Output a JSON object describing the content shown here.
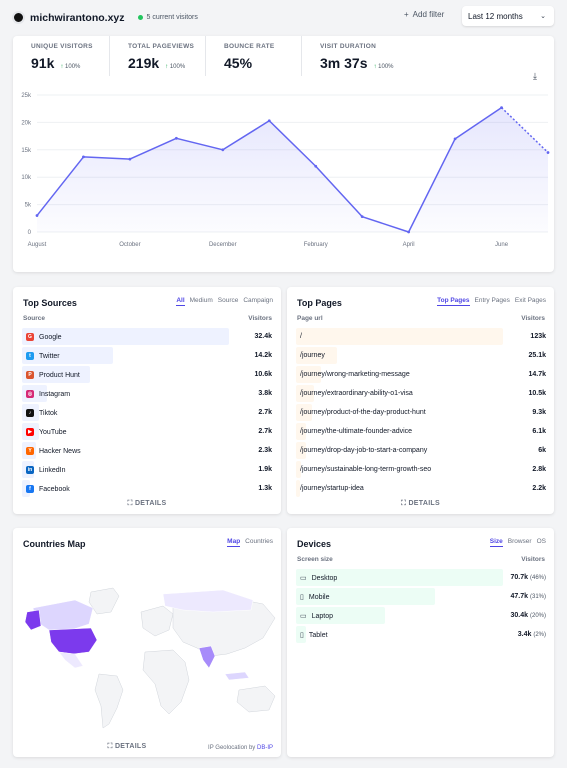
{
  "header": {
    "site": "michwirantono.xyz",
    "live_visitors": "5 current visitors",
    "add_filter": "Add filter",
    "period": "Last 12 months"
  },
  "stats": [
    {
      "label": "UNIQUE VISITORS",
      "value": "91k",
      "change": "100%"
    },
    {
      "label": "TOTAL PAGEVIEWS",
      "value": "219k",
      "change": "100%"
    },
    {
      "label": "BOUNCE RATE",
      "value": "45%",
      "change": ""
    },
    {
      "label": "VISIT DURATION",
      "value": "3m 37s",
      "change": "100%"
    }
  ],
  "chart_data": {
    "type": "line",
    "x": [
      "August",
      "September",
      "October",
      "November",
      "December",
      "January",
      "February",
      "March",
      "April",
      "May",
      "June",
      "July"
    ],
    "xticks": [
      "August",
      "October",
      "December",
      "February",
      "April",
      "June"
    ],
    "values": [
      3000,
      13700,
      13300,
      17100,
      15000,
      20300,
      12000,
      2800,
      0,
      17000,
      22700,
      14500
    ],
    "yticks": [
      "0",
      "5k",
      "10k",
      "15k",
      "20k",
      "25k"
    ],
    "ylim": [
      0,
      25000
    ],
    "color": "#6366f1",
    "last_point_incomplete": true
  },
  "sources": {
    "title": "Top Sources",
    "tabs": [
      "All",
      "Medium",
      "Source",
      "Campaign"
    ],
    "col_left": "Source",
    "col_right": "Visitors",
    "details": "DETAILS",
    "rows": [
      {
        "label": "Google",
        "value": "32.4k",
        "share": 1.0,
        "icon": "google-icon",
        "color": "#ea4335"
      },
      {
        "label": "Twitter",
        "value": "14.2k",
        "share": 0.44,
        "icon": "twitter-icon",
        "color": "#1d9bf0"
      },
      {
        "label": "Product Hunt",
        "value": "10.6k",
        "share": 0.33,
        "icon": "product-hunt-icon",
        "color": "#da552f"
      },
      {
        "label": "Instagram",
        "value": "3.8k",
        "share": 0.12,
        "icon": "instagram-icon",
        "color": "#d62976"
      },
      {
        "label": "Tiktok",
        "value": "2.7k",
        "share": 0.08,
        "icon": "tiktok-icon",
        "color": "#111111"
      },
      {
        "label": "YouTube",
        "value": "2.7k",
        "share": 0.08,
        "icon": "youtube-icon",
        "color": "#ff0000"
      },
      {
        "label": "Hacker News",
        "value": "2.3k",
        "share": 0.07,
        "icon": "hacker-news-icon",
        "color": "#ff6600"
      },
      {
        "label": "LinkedIn",
        "value": "1.9k",
        "share": 0.06,
        "icon": "linkedin-icon",
        "color": "#0a66c2"
      },
      {
        "label": "Facebook",
        "value": "1.3k",
        "share": 0.04,
        "icon": "facebook-icon",
        "color": "#1877f2"
      }
    ]
  },
  "pages": {
    "title": "Top Pages",
    "tabs": [
      "Top Pages",
      "Entry Pages",
      "Exit Pages"
    ],
    "col_left": "Page url",
    "col_right": "Visitors",
    "details": "DETAILS",
    "rows": [
      {
        "label": "/",
        "value": "123k",
        "share": 1.0
      },
      {
        "label": "/journey",
        "value": "25.1k",
        "share": 0.2
      },
      {
        "label": "/journey/wrong-marketing-message",
        "value": "14.7k",
        "share": 0.12
      },
      {
        "label": "/journey/extraordinary-ability-o1-visa",
        "value": "10.5k",
        "share": 0.085
      },
      {
        "label": "/journey/product-of-the-day-product-hunt",
        "value": "9.3k",
        "share": 0.075
      },
      {
        "label": "/journey/the-ultimate-founder-advice",
        "value": "6.1k",
        "share": 0.05
      },
      {
        "label": "/journey/drop-day-job-to-start-a-company",
        "value": "6k",
        "share": 0.049
      },
      {
        "label": "/journey/sustainable-long-term-growth-seo",
        "value": "2.8k",
        "share": 0.023
      },
      {
        "label": "/journey/startup-idea",
        "value": "2.2k",
        "share": 0.018
      }
    ]
  },
  "countries": {
    "title": "Countries Map",
    "tabs": [
      "Map",
      "Countries"
    ],
    "details": "DETAILS",
    "geo_prefix": "IP Geolocation by",
    "geo_link": "DB-IP"
  },
  "devices": {
    "title": "Devices",
    "tabs": [
      "Size",
      "Browser",
      "OS"
    ],
    "col_left": "Screen size",
    "col_right": "Visitors",
    "rows": [
      {
        "label": "Desktop",
        "value": "70.7k",
        "pct": "(46%)",
        "share": 1.0,
        "icon": "desktop-icon"
      },
      {
        "label": "Mobile",
        "value": "47.7k",
        "pct": "(31%)",
        "share": 0.67,
        "icon": "mobile-icon"
      },
      {
        "label": "Laptop",
        "value": "30.4k",
        "pct": "(20%)",
        "share": 0.43,
        "icon": "laptop-icon"
      },
      {
        "label": "Tablet",
        "value": "3.4k",
        "pct": "(2%)",
        "share": 0.05,
        "icon": "tablet-icon"
      }
    ]
  }
}
